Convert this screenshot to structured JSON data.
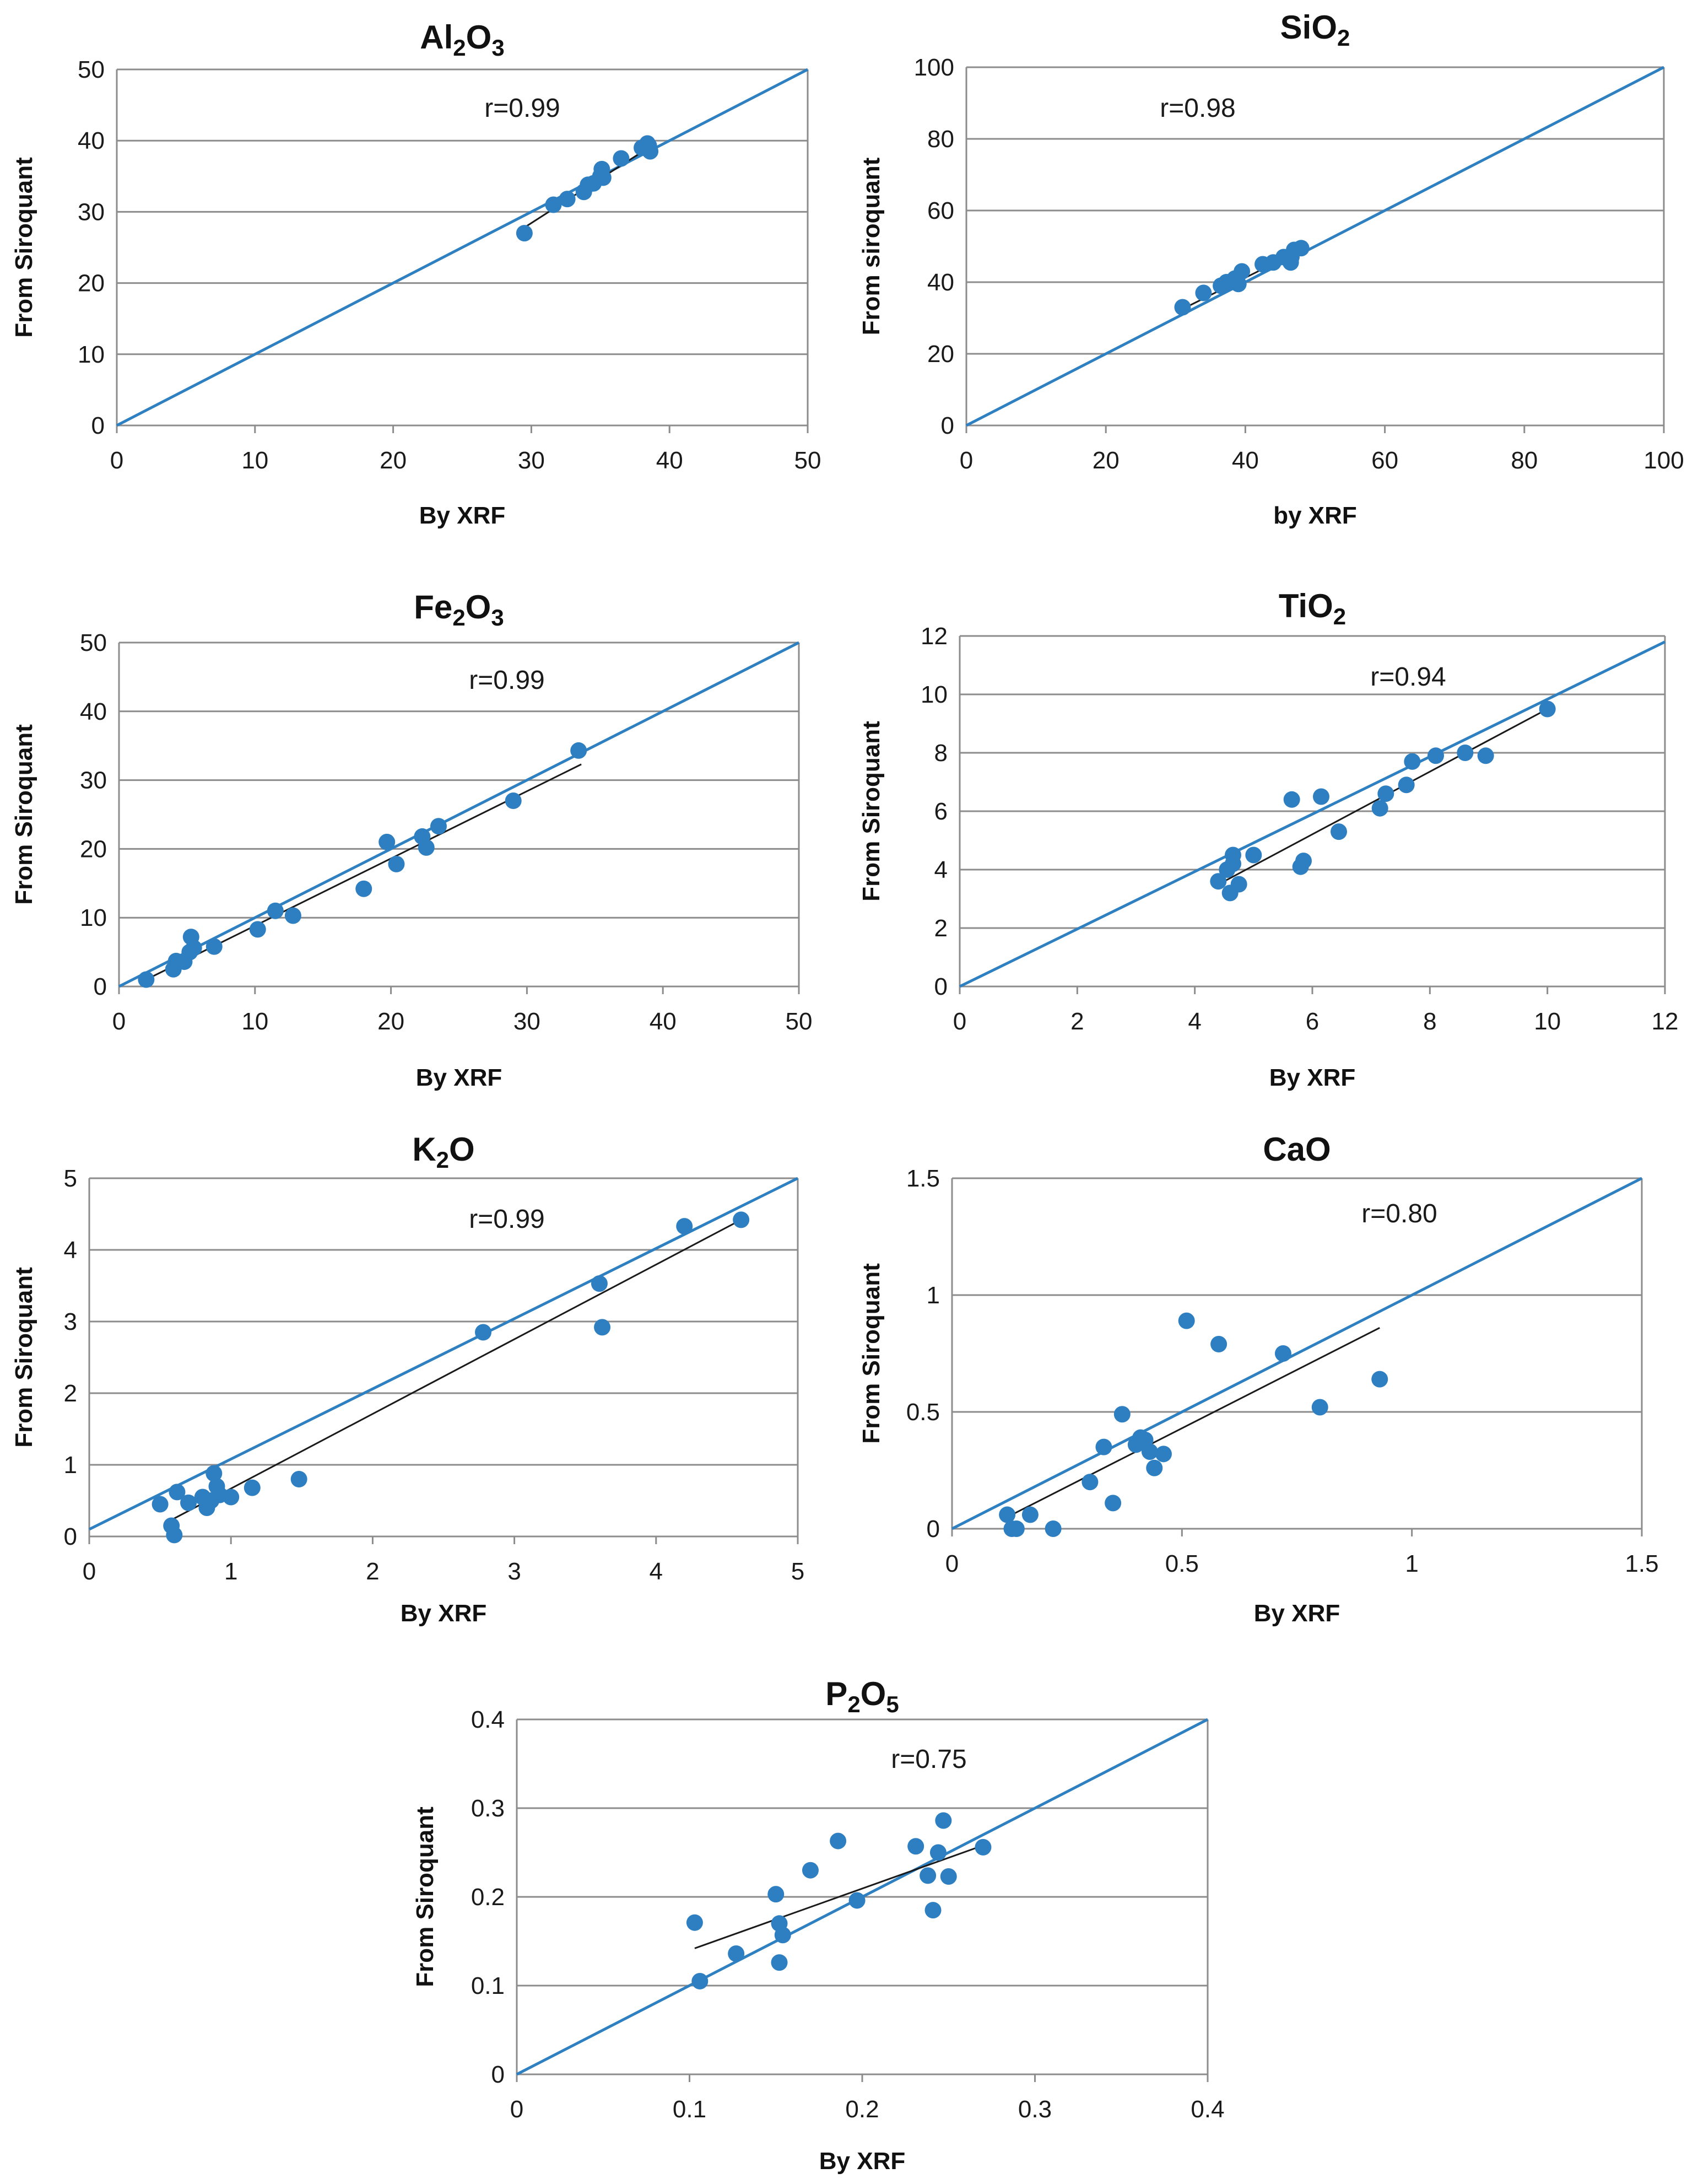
{
  "chart_data": [
    {
      "type": "scatter",
      "title_main": "Al",
      "title_sub1": "2",
      "title_mid": "O",
      "title_sub2": "3",
      "xlabel": "By XRF",
      "ylabel": "From Siroquant",
      "r_label": "r=0.99",
      "xlim": [
        0,
        50
      ],
      "ylim": [
        0,
        50
      ],
      "xticks": [
        0,
        10,
        20,
        30,
        40,
        50
      ],
      "yticks": [
        0,
        10,
        20,
        30,
        40,
        50
      ],
      "identity_line": [
        [
          0,
          0
        ],
        [
          50,
          50
        ]
      ],
      "trendline": [
        [
          29.5,
          27.8
        ],
        [
          38.8,
          39.4
        ]
      ],
      "points": [
        [
          29.5,
          27
        ],
        [
          31.6,
          31
        ],
        [
          32.6,
          31.8
        ],
        [
          33.8,
          32.8
        ],
        [
          34.1,
          33.8
        ],
        [
          34.5,
          34
        ],
        [
          35,
          35
        ],
        [
          35.2,
          34.8
        ],
        [
          35.1,
          36
        ],
        [
          36.5,
          37.5
        ],
        [
          38,
          39
        ],
        [
          38.4,
          39.6
        ],
        [
          38.6,
          38.5
        ],
        [
          38.5,
          39.3
        ]
      ]
    },
    {
      "type": "scatter",
      "title_main": "SiO",
      "title_sub1": "2",
      "title_mid": "",
      "title_sub2": "",
      "xlabel": "by XRF",
      "ylabel": "From siroquant",
      "r_label": "r=0.98",
      "xlim": [
        0,
        100
      ],
      "ylim": [
        0,
        100
      ],
      "xticks": [
        0,
        20,
        40,
        60,
        80,
        100
      ],
      "yticks": [
        0,
        20,
        40,
        60,
        80,
        100
      ],
      "identity_line": [
        [
          0,
          0
        ],
        [
          100,
          100
        ]
      ],
      "trendline": [
        [
          31.5,
          33
        ],
        [
          48.5,
          49.5
        ]
      ],
      "points": [
        [
          31,
          33
        ],
        [
          34,
          37
        ],
        [
          36.5,
          39
        ],
        [
          37.3,
          40
        ],
        [
          38.5,
          41
        ],
        [
          39,
          39.5
        ],
        [
          39.5,
          43
        ],
        [
          42.5,
          45
        ],
        [
          44,
          45.5
        ],
        [
          45.5,
          47
        ],
        [
          46.5,
          45.5
        ],
        [
          47,
          49
        ],
        [
          48,
          49.5
        ],
        [
          46.6,
          47
        ]
      ]
    },
    {
      "type": "scatter",
      "title_main": "Fe",
      "title_sub1": "2",
      "title_mid": "O",
      "title_sub2": "3",
      "xlabel": "By XRF",
      "ylabel": "From Siroquant",
      "r_label": "r=0.99",
      "xlim": [
        0,
        50
      ],
      "ylim": [
        0,
        50
      ],
      "xticks": [
        0,
        10,
        20,
        30,
        40,
        50
      ],
      "yticks": [
        0,
        10,
        20,
        30,
        40,
        50
      ],
      "identity_line": [
        [
          0,
          0
        ],
        [
          50,
          50
        ]
      ],
      "trendline": [
        [
          2,
          1
        ],
        [
          34,
          32.3
        ]
      ],
      "points": [
        [
          2,
          1
        ],
        [
          4,
          2.5
        ],
        [
          4.2,
          3.7
        ],
        [
          4.8,
          3.6
        ],
        [
          5.2,
          5
        ],
        [
          5.3,
          7.2
        ],
        [
          5.5,
          5.6
        ],
        [
          7,
          5.8
        ],
        [
          10.2,
          8.3
        ],
        [
          11.5,
          11
        ],
        [
          12.8,
          10.3
        ],
        [
          18,
          14.2
        ],
        [
          19.7,
          21
        ],
        [
          20.4,
          17.8
        ],
        [
          22.3,
          21.8
        ],
        [
          22.6,
          20.2
        ],
        [
          23.5,
          23.3
        ],
        [
          29,
          27
        ],
        [
          33.8,
          34.3
        ]
      ]
    },
    {
      "type": "scatter",
      "title_main": "TiO",
      "title_sub1": "2",
      "title_mid": "",
      "title_sub2": "",
      "xlabel": "By XRF",
      "ylabel": "From Siroquant",
      "r_label": "r=0.94",
      "xlim": [
        0,
        12
      ],
      "ylim": [
        0,
        12
      ],
      "xticks": [
        0,
        2,
        4,
        6,
        8,
        10,
        12
      ],
      "yticks": [
        0,
        2,
        4,
        6,
        8,
        10,
        12
      ],
      "identity_line": [
        [
          0,
          0
        ],
        [
          12,
          11.8
        ]
      ],
      "trendline": [
        [
          4.5,
          3.6
        ],
        [
          10,
          9.5
        ]
      ],
      "points": [
        [
          4.4,
          3.6
        ],
        [
          4.55,
          4
        ],
        [
          4.6,
          3.2
        ],
        [
          4.65,
          4.2
        ],
        [
          4.65,
          4.5
        ],
        [
          4.75,
          3.5
        ],
        [
          5,
          4.5
        ],
        [
          5.65,
          6.4
        ],
        [
          5.8,
          4.1
        ],
        [
          5.85,
          4.3
        ],
        [
          6.15,
          6.5
        ],
        [
          6.45,
          5.3
        ],
        [
          7.15,
          6.1
        ],
        [
          7.25,
          6.6
        ],
        [
          7.6,
          6.9
        ],
        [
          7.7,
          7.7
        ],
        [
          8.1,
          7.9
        ],
        [
          8.6,
          8
        ],
        [
          8.95,
          7.9
        ],
        [
          10,
          9.5
        ]
      ]
    },
    {
      "type": "scatter",
      "title_main": "K",
      "title_sub1": "2",
      "title_mid": "O",
      "title_sub2": "",
      "xlabel": "By XRF",
      "ylabel": "From Siroquant",
      "r_label": "r=0.99",
      "xlim": [
        0,
        5
      ],
      "ylim": [
        0,
        5
      ],
      "xticks": [
        0,
        1,
        2,
        3,
        4,
        5
      ],
      "yticks": [
        0,
        1,
        2,
        3,
        4,
        5
      ],
      "identity_line": [
        [
          0,
          0.1
        ],
        [
          5,
          5
        ]
      ],
      "trendline": [
        [
          0.55,
          0.2
        ],
        [
          4.6,
          4.42
        ]
      ],
      "points": [
        [
          0.5,
          0.45
        ],
        [
          0.58,
          0.15
        ],
        [
          0.6,
          0.02
        ],
        [
          0.62,
          0.62
        ],
        [
          0.7,
          0.47
        ],
        [
          0.8,
          0.55
        ],
        [
          0.83,
          0.4
        ],
        [
          0.86,
          0.5
        ],
        [
          0.88,
          0.88
        ],
        [
          0.9,
          0.7
        ],
        [
          0.92,
          0.58
        ],
        [
          1,
          0.55
        ],
        [
          1.15,
          0.68
        ],
        [
          1.48,
          0.8
        ],
        [
          2.78,
          2.85
        ],
        [
          3.6,
          3.53
        ],
        [
          3.62,
          2.92
        ],
        [
          4.2,
          4.33
        ],
        [
          4.6,
          4.42
        ]
      ]
    },
    {
      "type": "scatter",
      "title_main": "CaO",
      "title_sub1": "",
      "title_mid": "",
      "title_sub2": "",
      "xlabel": "By XRF",
      "ylabel": "From Siroquant",
      "r_label": "r=0.80",
      "xlim": [
        0,
        1.5
      ],
      "ylim": [
        0,
        1.5
      ],
      "xticks": [
        "0",
        "0.5",
        "1",
        "1.5"
      ],
      "yticks": [
        "0",
        "0.5",
        "1",
        "1.5"
      ],
      "identity_line": [
        [
          0,
          0
        ],
        [
          1.5,
          1.5
        ]
      ],
      "trendline": [
        [
          0.12,
          0.05
        ],
        [
          0.93,
          0.86
        ]
      ],
      "points": [
        [
          0.12,
          0.06
        ],
        [
          0.13,
          0
        ],
        [
          0.14,
          0
        ],
        [
          0.17,
          0.06
        ],
        [
          0.22,
          0
        ],
        [
          0.3,
          0.2
        ],
        [
          0.33,
          0.35
        ],
        [
          0.35,
          0.11
        ],
        [
          0.37,
          0.49
        ],
        [
          0.4,
          0.36
        ],
        [
          0.41,
          0.39
        ],
        [
          0.42,
          0.38
        ],
        [
          0.43,
          0.33
        ],
        [
          0.44,
          0.26
        ],
        [
          0.46,
          0.32
        ],
        [
          0.51,
          0.89
        ],
        [
          0.58,
          0.79
        ],
        [
          0.72,
          0.75
        ],
        [
          0.8,
          0.52
        ],
        [
          0.93,
          0.64
        ]
      ]
    },
    {
      "type": "scatter",
      "title_main": "P",
      "title_sub1": "2",
      "title_mid": "O",
      "title_sub2": "5",
      "xlabel": "By XRF",
      "ylabel": "From Siroquant",
      "r_label": "r=0.75",
      "xlim": [
        0,
        0.4
      ],
      "ylim": [
        0,
        0.4
      ],
      "xticks": [
        "0",
        "0.1",
        "0.2",
        "0.3",
        "0.4"
      ],
      "yticks": [
        "0",
        "0.1",
        "0.2",
        "0.3",
        "0.4"
      ],
      "identity_line": [
        [
          0,
          0
        ],
        [
          0.4,
          0.4
        ]
      ],
      "trendline": [
        [
          0.103,
          0.142
        ],
        [
          0.27,
          0.258
        ]
      ],
      "points": [
        [
          0.103,
          0.171
        ],
        [
          0.106,
          0.105
        ],
        [
          0.127,
          0.136
        ],
        [
          0.15,
          0.203
        ],
        [
          0.152,
          0.17
        ],
        [
          0.152,
          0.126
        ],
        [
          0.154,
          0.157
        ],
        [
          0.17,
          0.23
        ],
        [
          0.186,
          0.263
        ],
        [
          0.197,
          0.196
        ],
        [
          0.231,
          0.257
        ],
        [
          0.238,
          0.224
        ],
        [
          0.241,
          0.185
        ],
        [
          0.244,
          0.25
        ],
        [
          0.247,
          0.286
        ],
        [
          0.25,
          0.223
        ],
        [
          0.27,
          0.256
        ]
      ]
    }
  ]
}
